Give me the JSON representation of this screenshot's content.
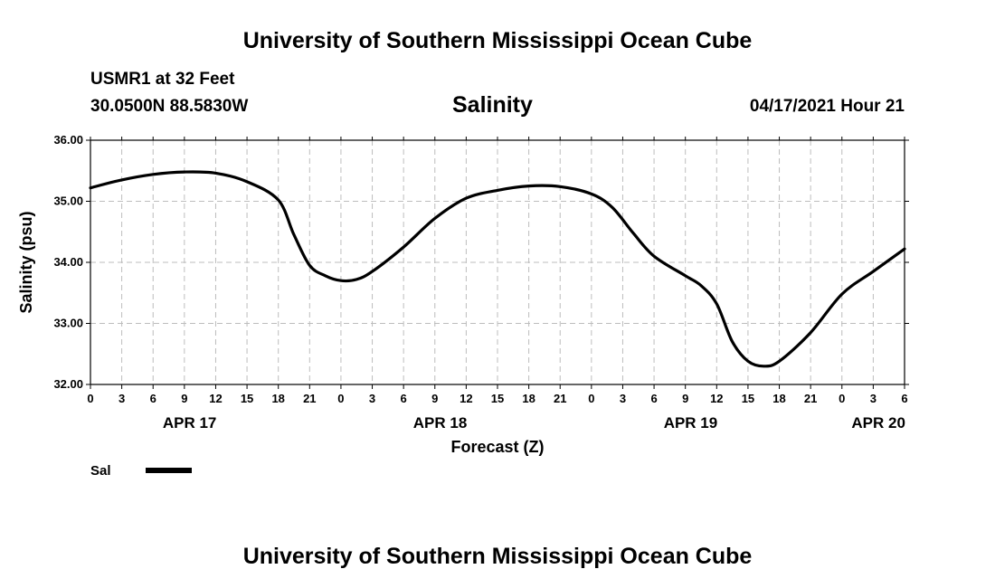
{
  "header": {
    "top_title": "University of Southern Mississippi Ocean Cube",
    "station": "USMR1 at 32 Feet",
    "coords": "30.0500N  88.5830W",
    "datetime": "04/17/2021 Hour 21",
    "bottom_title": "University of Southern Mississippi Ocean Cube"
  },
  "chart_data": {
    "type": "line",
    "title": "Salinity",
    "xlabel": "Forecast (Z)",
    "ylabel": "Salinity (psu)",
    "xlim": [
      0,
      78
    ],
    "ylim": [
      32.0,
      36.0
    ],
    "y_ticks": [
      "32.00",
      "33.00",
      "34.00",
      "35.00",
      "36.00"
    ],
    "x_tick_labels": [
      "0",
      "3",
      "6",
      "9",
      "12",
      "15",
      "18",
      "21",
      "0",
      "3",
      "6",
      "9",
      "12",
      "15",
      "18",
      "21",
      "0",
      "3",
      "6",
      "9",
      "12",
      "15",
      "18",
      "21",
      "0",
      "3",
      "6"
    ],
    "date_labels": [
      {
        "label": "APR 17",
        "hour": 9.5
      },
      {
        "label": "APR 18",
        "hour": 33.5
      },
      {
        "label": "APR 19",
        "hour": 57.5
      },
      {
        "label": "APR 20",
        "hour": 75.5
      }
    ],
    "grid": true,
    "legend": {
      "position": "bottom-left",
      "entries": [
        "Sal"
      ]
    },
    "series": [
      {
        "name": "Sal",
        "x": [
          0,
          3,
          6,
          9,
          12,
          15,
          18,
          19.5,
          21,
          22.5,
          24,
          25.5,
          27,
          30,
          33,
          36,
          39,
          42,
          45,
          48,
          50,
          52,
          54,
          57,
          58.5,
          60,
          61.5,
          63,
          64.5,
          66,
          69,
          72,
          75,
          78
        ],
        "values": [
          35.22,
          35.35,
          35.44,
          35.48,
          35.46,
          35.32,
          35.02,
          34.45,
          33.95,
          33.78,
          33.7,
          33.72,
          33.85,
          34.25,
          34.72,
          35.05,
          35.18,
          35.25,
          35.24,
          35.12,
          34.9,
          34.48,
          34.1,
          33.78,
          33.62,
          33.32,
          32.7,
          32.38,
          32.3,
          32.38,
          32.85,
          33.48,
          33.85,
          34.22
        ]
      }
    ]
  }
}
